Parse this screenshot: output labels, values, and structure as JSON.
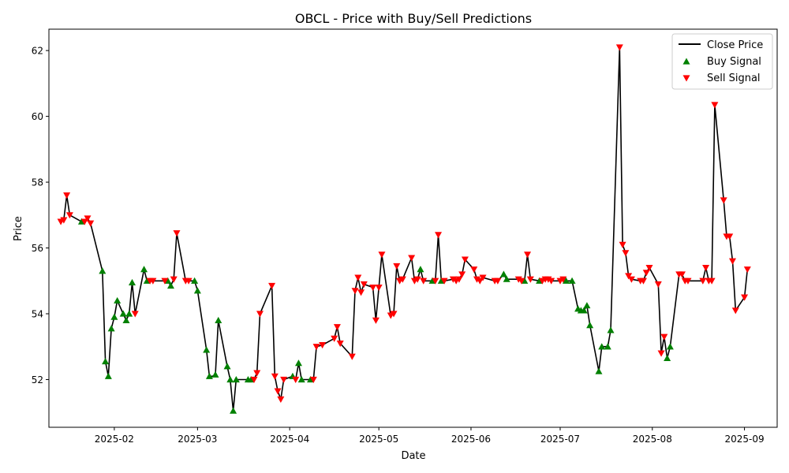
{
  "chart_data": {
    "type": "line",
    "title": "OBCL - Price with Buy/Sell Predictions",
    "xlabel": "Date",
    "ylabel": "Price",
    "xlim": [
      "2025-01-10",
      "2025-09-12"
    ],
    "ylim": [
      50.55,
      62.65
    ],
    "x_ticks": [
      "2025-02-01",
      "2025-03-01",
      "2025-04-01",
      "2025-05-01",
      "2025-06-01",
      "2025-07-01",
      "2025-08-01",
      "2025-09-01"
    ],
    "x_tick_labels": [
      "2025-02",
      "2025-03",
      "2025-04",
      "2025-05",
      "2025-06",
      "2025-07",
      "2025-08",
      "2025-09"
    ],
    "y_ticks": [
      52,
      54,
      56,
      58,
      60,
      62
    ],
    "grid": false,
    "legend": {
      "position": "top-right",
      "entries": [
        {
          "label": "Close Price",
          "kind": "line",
          "color": "#000000"
        },
        {
          "label": "Buy Signal",
          "kind": "triangle-up",
          "color": "#008000"
        },
        {
          "label": "Sell Signal",
          "kind": "triangle-down",
          "color": "#ff0000"
        }
      ]
    },
    "series": [
      {
        "name": "Close Price",
        "color": "#000000",
        "points": [
          [
            "2025-01-14",
            56.8
          ],
          [
            "2025-01-15",
            56.85
          ],
          [
            "2025-01-16",
            57.6
          ],
          [
            "2025-01-17",
            57.0
          ],
          [
            "2025-01-21",
            56.8
          ],
          [
            "2025-01-22",
            56.8
          ],
          [
            "2025-01-23",
            56.9
          ],
          [
            "2025-01-24",
            56.75
          ],
          [
            "2025-01-28",
            55.3
          ],
          [
            "2025-01-29",
            52.55
          ],
          [
            "2025-01-30",
            52.1
          ],
          [
            "2025-01-31",
            53.55
          ],
          [
            "2025-02-01",
            53.9
          ],
          [
            "2025-02-02",
            54.4
          ],
          [
            "2025-02-04",
            54.0
          ],
          [
            "2025-02-05",
            53.8
          ],
          [
            "2025-02-06",
            54.0
          ],
          [
            "2025-02-07",
            54.95
          ],
          [
            "2025-02-08",
            54.0
          ],
          [
            "2025-02-11",
            55.35
          ],
          [
            "2025-02-12",
            55.0
          ],
          [
            "2025-02-13",
            55.0
          ],
          [
            "2025-02-14",
            55.0
          ],
          [
            "2025-02-18",
            55.0
          ],
          [
            "2025-02-19",
            55.0
          ],
          [
            "2025-02-20",
            54.85
          ],
          [
            "2025-02-21",
            55.05
          ],
          [
            "2025-02-22",
            56.45
          ],
          [
            "2025-02-25",
            55.0
          ],
          [
            "2025-02-26",
            55.0
          ],
          [
            "2025-02-28",
            55.0
          ],
          [
            "2025-03-01",
            54.7
          ],
          [
            "2025-03-04",
            52.9
          ],
          [
            "2025-03-05",
            52.1
          ],
          [
            "2025-03-06",
            52.1
          ],
          [
            "2025-03-07",
            52.15
          ],
          [
            "2025-03-08",
            53.8
          ],
          [
            "2025-03-11",
            52.4
          ],
          [
            "2025-03-12",
            52.0
          ],
          [
            "2025-03-13",
            51.05
          ],
          [
            "2025-03-14",
            52.0
          ],
          [
            "2025-03-18",
            52.0
          ],
          [
            "2025-03-19",
            52.0
          ],
          [
            "2025-03-20",
            52.0
          ],
          [
            "2025-03-21",
            52.2
          ],
          [
            "2025-03-22",
            54.0
          ],
          [
            "2025-03-26",
            54.85
          ],
          [
            "2025-03-27",
            52.1
          ],
          [
            "2025-03-28",
            51.65
          ],
          [
            "2025-03-29",
            51.4
          ],
          [
            "2025-03-30",
            52.0
          ],
          [
            "2025-04-02",
            52.1
          ],
          [
            "2025-04-03",
            52.0
          ],
          [
            "2025-04-04",
            52.5
          ],
          [
            "2025-04-05",
            52.0
          ],
          [
            "2025-04-08",
            52.0
          ],
          [
            "2025-04-09",
            52.0
          ],
          [
            "2025-04-10",
            53.0
          ],
          [
            "2025-04-12",
            53.05
          ],
          [
            "2025-04-16",
            53.25
          ],
          [
            "2025-04-17",
            53.6
          ],
          [
            "2025-04-18",
            53.1
          ],
          [
            "2025-04-22",
            52.7
          ],
          [
            "2025-04-23",
            54.7
          ],
          [
            "2025-04-24",
            55.1
          ],
          [
            "2025-04-25",
            54.65
          ],
          [
            "2025-04-26",
            54.9
          ],
          [
            "2025-04-29",
            54.8
          ],
          [
            "2025-04-30",
            53.8
          ],
          [
            "2025-05-01",
            54.8
          ],
          [
            "2025-05-02",
            55.8
          ],
          [
            "2025-05-05",
            53.95
          ],
          [
            "2025-05-06",
            54.0
          ],
          [
            "2025-05-07",
            55.45
          ],
          [
            "2025-05-08",
            55.0
          ],
          [
            "2025-05-09",
            55.05
          ],
          [
            "2025-05-12",
            55.7
          ],
          [
            "2025-05-13",
            55.0
          ],
          [
            "2025-05-14",
            55.05
          ],
          [
            "2025-05-15",
            55.35
          ],
          [
            "2025-05-16",
            55.0
          ],
          [
            "2025-05-19",
            55.0
          ],
          [
            "2025-05-20",
            55.0
          ],
          [
            "2025-05-21",
            56.4
          ],
          [
            "2025-05-22",
            55.0
          ],
          [
            "2025-05-23",
            55.0
          ],
          [
            "2025-05-26",
            55.05
          ],
          [
            "2025-05-27",
            55.0
          ],
          [
            "2025-05-28",
            55.05
          ],
          [
            "2025-05-29",
            55.2
          ],
          [
            "2025-05-30",
            55.65
          ],
          [
            "2025-06-02",
            55.35
          ],
          [
            "2025-06-03",
            55.05
          ],
          [
            "2025-06-04",
            55.0
          ],
          [
            "2025-06-05",
            55.1
          ],
          [
            "2025-06-09",
            55.0
          ],
          [
            "2025-06-10",
            55.0
          ],
          [
            "2025-06-12",
            55.2
          ],
          [
            "2025-06-13",
            55.05
          ],
          [
            "2025-06-17",
            55.05
          ],
          [
            "2025-06-18",
            55.0
          ],
          [
            "2025-06-19",
            55.0
          ],
          [
            "2025-06-20",
            55.8
          ],
          [
            "2025-06-21",
            55.05
          ],
          [
            "2025-06-24",
            55.0
          ],
          [
            "2025-06-25",
            55.0
          ],
          [
            "2025-06-26",
            55.05
          ],
          [
            "2025-06-27",
            55.05
          ],
          [
            "2025-06-28",
            55.0
          ],
          [
            "2025-07-01",
            55.0
          ],
          [
            "2025-07-02",
            55.05
          ],
          [
            "2025-07-03",
            55.0
          ],
          [
            "2025-07-05",
            55.0
          ],
          [
            "2025-07-07",
            54.15
          ],
          [
            "2025-07-08",
            54.1
          ],
          [
            "2025-07-09",
            54.1
          ],
          [
            "2025-07-10",
            54.25
          ],
          [
            "2025-07-11",
            53.65
          ],
          [
            "2025-07-14",
            52.25
          ],
          [
            "2025-07-15",
            53.0
          ],
          [
            "2025-07-16",
            53.0
          ],
          [
            "2025-07-17",
            53.0
          ],
          [
            "2025-07-18",
            53.5
          ],
          [
            "2025-07-21",
            62.1
          ],
          [
            "2025-07-22",
            56.1
          ],
          [
            "2025-07-23",
            55.85
          ],
          [
            "2025-07-24",
            55.15
          ],
          [
            "2025-07-25",
            55.05
          ],
          [
            "2025-07-28",
            55.0
          ],
          [
            "2025-07-29",
            55.0
          ],
          [
            "2025-07-30",
            55.25
          ],
          [
            "2025-07-31",
            55.4
          ],
          [
            "2025-08-03",
            54.9
          ],
          [
            "2025-08-04",
            52.8
          ],
          [
            "2025-08-05",
            53.3
          ],
          [
            "2025-08-06",
            52.65
          ],
          [
            "2025-08-07",
            53.0
          ],
          [
            "2025-08-10",
            55.2
          ],
          [
            "2025-08-11",
            55.2
          ],
          [
            "2025-08-12",
            55.0
          ],
          [
            "2025-08-13",
            55.0
          ],
          [
            "2025-08-18",
            55.0
          ],
          [
            "2025-08-19",
            55.4
          ],
          [
            "2025-08-20",
            55.0
          ],
          [
            "2025-08-21",
            55.0
          ],
          [
            "2025-08-22",
            60.35
          ],
          [
            "2025-08-25",
            57.45
          ],
          [
            "2025-08-26",
            56.35
          ],
          [
            "2025-08-27",
            56.35
          ],
          [
            "2025-08-28",
            55.6
          ],
          [
            "2025-08-29",
            54.1
          ],
          [
            "2025-09-01",
            54.5
          ],
          [
            "2025-09-02",
            55.35
          ]
        ]
      }
    ],
    "buy_signals": [
      [
        "2025-01-21",
        56.8
      ],
      [
        "2025-01-28",
        55.3
      ],
      [
        "2025-01-29",
        52.55
      ],
      [
        "2025-01-30",
        52.1
      ],
      [
        "2025-01-31",
        53.55
      ],
      [
        "2025-02-01",
        53.9
      ],
      [
        "2025-02-02",
        54.4
      ],
      [
        "2025-02-04",
        54.0
      ],
      [
        "2025-02-05",
        53.8
      ],
      [
        "2025-02-06",
        54.0
      ],
      [
        "2025-02-07",
        54.95
      ],
      [
        "2025-02-11",
        55.35
      ],
      [
        "2025-02-12",
        55.0
      ],
      [
        "2025-02-19",
        55.0
      ],
      [
        "2025-02-20",
        54.85
      ],
      [
        "2025-02-28",
        55.0
      ],
      [
        "2025-03-01",
        54.7
      ],
      [
        "2025-03-04",
        52.9
      ],
      [
        "2025-03-05",
        52.1
      ],
      [
        "2025-03-07",
        52.15
      ],
      [
        "2025-03-08",
        53.8
      ],
      [
        "2025-03-11",
        52.4
      ],
      [
        "2025-03-12",
        52.0
      ],
      [
        "2025-03-13",
        51.05
      ],
      [
        "2025-03-14",
        52.0
      ],
      [
        "2025-03-18",
        52.0
      ],
      [
        "2025-03-19",
        52.0
      ],
      [
        "2025-04-02",
        52.1
      ],
      [
        "2025-04-04",
        52.5
      ],
      [
        "2025-04-05",
        52.0
      ],
      [
        "2025-04-08",
        52.0
      ],
      [
        "2025-05-15",
        55.35
      ],
      [
        "2025-05-19",
        55.0
      ],
      [
        "2025-05-22",
        55.0
      ],
      [
        "2025-06-12",
        55.2
      ],
      [
        "2025-06-13",
        55.05
      ],
      [
        "2025-06-19",
        55.0
      ],
      [
        "2025-06-24",
        55.0
      ],
      [
        "2025-07-03",
        55.0
      ],
      [
        "2025-07-05",
        55.0
      ],
      [
        "2025-07-07",
        54.15
      ],
      [
        "2025-07-08",
        54.1
      ],
      [
        "2025-07-09",
        54.1
      ],
      [
        "2025-07-10",
        54.25
      ],
      [
        "2025-07-11",
        53.65
      ],
      [
        "2025-07-14",
        52.25
      ],
      [
        "2025-07-15",
        53.0
      ],
      [
        "2025-07-17",
        53.0
      ],
      [
        "2025-07-18",
        53.5
      ],
      [
        "2025-08-06",
        52.65
      ],
      [
        "2025-08-07",
        53.0
      ]
    ],
    "sell_signals": [
      [
        "2025-01-14",
        56.8
      ],
      [
        "2025-01-15",
        56.85
      ],
      [
        "2025-01-16",
        57.6
      ],
      [
        "2025-01-17",
        57.0
      ],
      [
        "2025-01-22",
        56.8
      ],
      [
        "2025-01-23",
        56.9
      ],
      [
        "2025-01-24",
        56.75
      ],
      [
        "2025-02-08",
        54.0
      ],
      [
        "2025-02-13",
        55.0
      ],
      [
        "2025-02-14",
        55.0
      ],
      [
        "2025-02-18",
        55.0
      ],
      [
        "2025-02-21",
        55.05
      ],
      [
        "2025-02-22",
        56.45
      ],
      [
        "2025-02-25",
        55.0
      ],
      [
        "2025-02-26",
        55.0
      ],
      [
        "2025-03-20",
        52.0
      ],
      [
        "2025-03-21",
        52.2
      ],
      [
        "2025-03-22",
        54.0
      ],
      [
        "2025-03-26",
        54.85
      ],
      [
        "2025-03-27",
        52.1
      ],
      [
        "2025-03-28",
        51.65
      ],
      [
        "2025-03-29",
        51.4
      ],
      [
        "2025-03-30",
        52.0
      ],
      [
        "2025-04-03",
        52.0
      ],
      [
        "2025-04-09",
        52.0
      ],
      [
        "2025-04-10",
        53.0
      ],
      [
        "2025-04-12",
        53.05
      ],
      [
        "2025-04-16",
        53.25
      ],
      [
        "2025-04-17",
        53.6
      ],
      [
        "2025-04-18",
        53.1
      ],
      [
        "2025-04-22",
        52.7
      ],
      [
        "2025-04-23",
        54.7
      ],
      [
        "2025-04-24",
        55.1
      ],
      [
        "2025-04-25",
        54.65
      ],
      [
        "2025-04-26",
        54.9
      ],
      [
        "2025-04-29",
        54.8
      ],
      [
        "2025-04-30",
        53.8
      ],
      [
        "2025-05-01",
        54.8
      ],
      [
        "2025-05-02",
        55.8
      ],
      [
        "2025-05-05",
        53.95
      ],
      [
        "2025-05-06",
        54.0
      ],
      [
        "2025-05-07",
        55.45
      ],
      [
        "2025-05-08",
        55.0
      ],
      [
        "2025-05-09",
        55.05
      ],
      [
        "2025-05-12",
        55.7
      ],
      [
        "2025-05-13",
        55.0
      ],
      [
        "2025-05-14",
        55.05
      ],
      [
        "2025-05-16",
        55.0
      ],
      [
        "2025-05-20",
        55.0
      ],
      [
        "2025-05-21",
        56.4
      ],
      [
        "2025-05-23",
        55.0
      ],
      [
        "2025-05-26",
        55.05
      ],
      [
        "2025-05-27",
        55.0
      ],
      [
        "2025-05-28",
        55.05
      ],
      [
        "2025-05-29",
        55.2
      ],
      [
        "2025-05-30",
        55.65
      ],
      [
        "2025-06-02",
        55.35
      ],
      [
        "2025-06-03",
        55.05
      ],
      [
        "2025-06-04",
        55.0
      ],
      [
        "2025-06-05",
        55.1
      ],
      [
        "2025-06-09",
        55.0
      ],
      [
        "2025-06-10",
        55.0
      ],
      [
        "2025-06-17",
        55.05
      ],
      [
        "2025-06-18",
        55.0
      ],
      [
        "2025-06-20",
        55.8
      ],
      [
        "2025-06-21",
        55.05
      ],
      [
        "2025-06-25",
        55.0
      ],
      [
        "2025-06-26",
        55.05
      ],
      [
        "2025-06-27",
        55.05
      ],
      [
        "2025-06-28",
        55.0
      ],
      [
        "2025-07-01",
        55.0
      ],
      [
        "2025-07-02",
        55.05
      ],
      [
        "2025-07-21",
        62.1
      ],
      [
        "2025-07-22",
        56.1
      ],
      [
        "2025-07-23",
        55.85
      ],
      [
        "2025-07-24",
        55.15
      ],
      [
        "2025-07-25",
        55.05
      ],
      [
        "2025-07-28",
        55.0
      ],
      [
        "2025-07-29",
        55.0
      ],
      [
        "2025-07-30",
        55.25
      ],
      [
        "2025-07-31",
        55.4
      ],
      [
        "2025-08-03",
        54.9
      ],
      [
        "2025-08-04",
        52.8
      ],
      [
        "2025-08-05",
        53.3
      ],
      [
        "2025-08-10",
        55.2
      ],
      [
        "2025-08-11",
        55.2
      ],
      [
        "2025-08-12",
        55.0
      ],
      [
        "2025-08-13",
        55.0
      ],
      [
        "2025-08-18",
        55.0
      ],
      [
        "2025-08-19",
        55.4
      ],
      [
        "2025-08-20",
        55.0
      ],
      [
        "2025-08-21",
        55.0
      ],
      [
        "2025-08-22",
        60.35
      ],
      [
        "2025-08-25",
        57.45
      ],
      [
        "2025-08-26",
        56.35
      ],
      [
        "2025-08-27",
        56.35
      ],
      [
        "2025-08-28",
        55.6
      ],
      [
        "2025-08-29",
        54.1
      ],
      [
        "2025-09-01",
        54.5
      ],
      [
        "2025-09-02",
        55.35
      ]
    ]
  }
}
